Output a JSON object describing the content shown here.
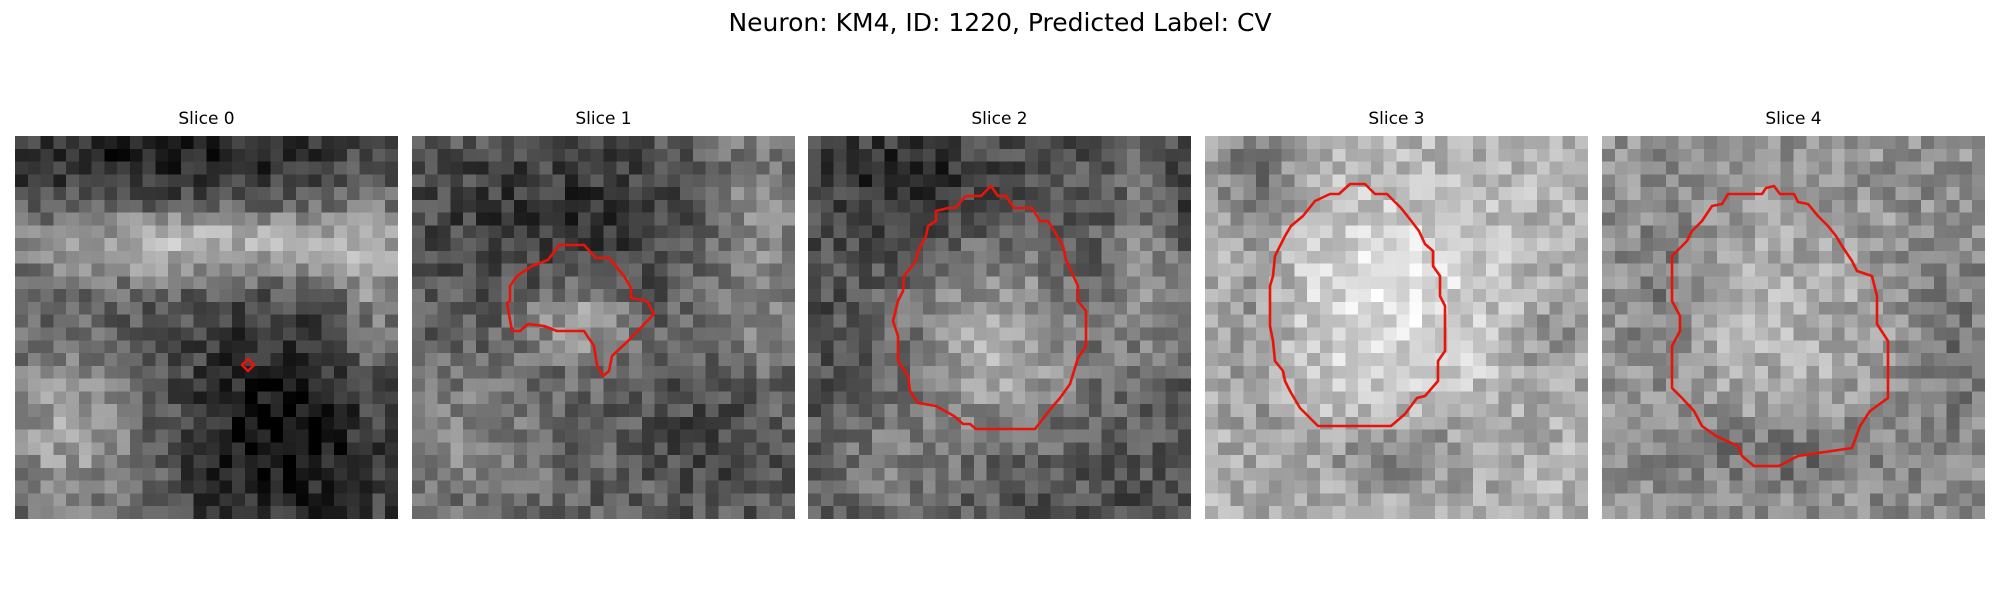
{
  "figure": {
    "title": "Neuron: KM4, ID: 1220, Predicted Label: CV"
  },
  "colors": {
    "contour": "#e8140a",
    "background": "#ffffff"
  },
  "slices": [
    {
      "title": "Slice 0",
      "image_description": "grayscale microscopy patch with bright band across upper middle and dark region lower right"
    },
    {
      "title": "Slice 1",
      "image_description": "grayscale microscopy patch with irregular outlined blob in center"
    },
    {
      "title": "Slice 2",
      "image_description": "grayscale microscopy patch with bright circular cell outlined"
    },
    {
      "title": "Slice 3",
      "image_description": "bright grayscale patch with large rounded cell outlined"
    },
    {
      "title": "Slice 4",
      "image_description": "textured grayscale patch with rounded cell outlined"
    }
  ]
}
